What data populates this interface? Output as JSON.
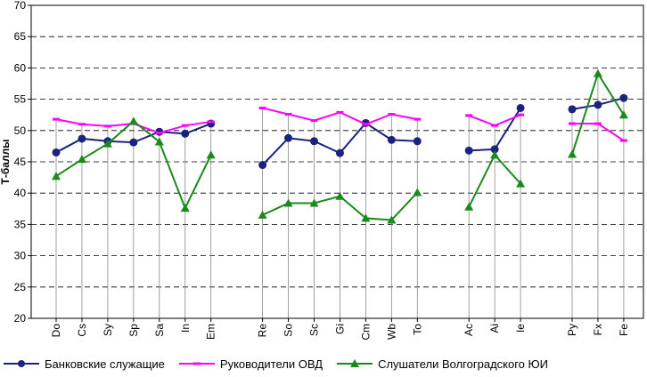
{
  "chart_data": {
    "type": "line",
    "title": "",
    "xlabel": "",
    "ylabel": "Т-баллы",
    "ylim": [
      20,
      70
    ],
    "yticks": [
      20,
      25,
      30,
      35,
      40,
      45,
      50,
      55,
      60,
      65,
      70
    ],
    "grid": true,
    "legend_position": "bottom",
    "groups": [
      [
        "Do",
        "Cs",
        "Sy",
        "Sp",
        "Sa",
        "In",
        "Em"
      ],
      [
        "Re",
        "So",
        "Sc",
        "Gi",
        "Cm",
        "Wb",
        "To"
      ],
      [
        "Ac",
        "Ai",
        "Ie"
      ],
      [
        "Py",
        "Fx",
        "Fe"
      ]
    ],
    "categories": [
      "Do",
      "Cs",
      "Sy",
      "Sp",
      "Sa",
      "In",
      "Em",
      "",
      "Re",
      "So",
      "Sc",
      "Gi",
      "Cm",
      "Wb",
      "To",
      "",
      "Ac",
      "Ai",
      "Ie",
      "",
      "Py",
      "Fx",
      "Fe"
    ],
    "series": [
      {
        "name": "Банковские служащие",
        "color": "#1a237e",
        "marker": "circle",
        "values": [
          46.5,
          48.7,
          48.3,
          48.1,
          49.8,
          49.5,
          51.1,
          null,
          44.5,
          48.8,
          48.3,
          46.4,
          51.2,
          48.5,
          48.3,
          null,
          46.8,
          47.0,
          53.6,
          null,
          53.4,
          54.1,
          55.2
        ]
      },
      {
        "name": "Руководители ОВД",
        "color": "#ff00ff",
        "marker": "dash",
        "values": [
          51.8,
          51.0,
          50.7,
          51.1,
          49.6,
          50.8,
          51.4,
          null,
          53.6,
          52.6,
          51.6,
          52.9,
          51.0,
          52.6,
          51.8,
          null,
          52.4,
          50.8,
          52.5,
          null,
          51.1,
          51.1,
          48.4
        ]
      },
      {
        "name": "Слушатели Волгоградского ЮИ",
        "color": "#1a8a1a",
        "marker": "triangle",
        "values": [
          42.7,
          45.4,
          47.9,
          51.5,
          48.2,
          37.6,
          46.1,
          null,
          36.5,
          38.4,
          38.4,
          39.5,
          36.0,
          35.7,
          40.1,
          null,
          37.8,
          46.1,
          41.5,
          null,
          46.2,
          59.1,
          52.5
        ]
      }
    ]
  }
}
